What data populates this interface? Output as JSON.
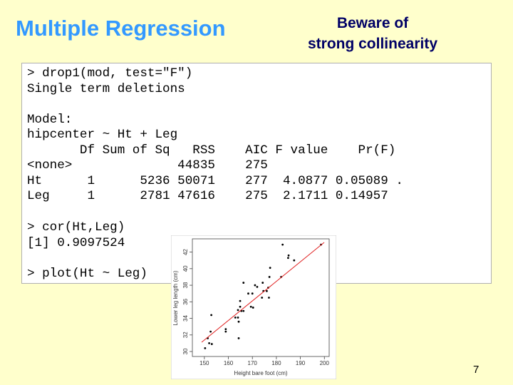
{
  "header": {
    "title": "Multiple Regression",
    "note": [
      "Beware of",
      "strong collinearity"
    ]
  },
  "console": {
    "lines": [
      "> drop1(mod, test=\"F\")",
      "Single term deletions",
      "Model:",
      "hipcenter ~ Ht + Leg",
      "       Df Sum of Sq   RSS    AIC F value    Pr(F)",
      "<none>              44835    275",
      "Ht      1      5236 50071    277  4.0877 0.05089 .",
      "Leg     1      2781 47616    275  2.1711 0.14957",
      "> cor(Ht,Leg)",
      "[1] 0.9097524",
      "> plot(Ht ~ Leg)"
    ]
  },
  "chart_data": {
    "type": "scatter",
    "x_label": "Height bare foot (cm)",
    "y_label": "Lower leg length (cm)",
    "x": [
      182.6,
      198.6,
      185.1,
      184.9,
      187.4,
      177.4,
      177.1,
      182.0,
      166.3,
      174.3,
      171.1,
      172.0,
      176.6,
      170.0,
      174.6,
      176.0,
      164.9,
      168.3,
      174.0,
      176.9,
      164.9,
      164.0,
      165.4,
      166.3,
      169.4,
      170.3,
      162.9,
      164.0,
      164.3,
      152.9,
      158.9,
      158.9,
      152.6,
      151.4,
      152.0,
      153.1,
      164.3,
      150.3
    ],
    "y": [
      42.9,
      42.9,
      41.6,
      41.3,
      41.0,
      40.1,
      39.0,
      39.0,
      38.3,
      38.3,
      38.0,
      37.8,
      37.7,
      37.0,
      37.3,
      37.3,
      36.1,
      37.0,
      36.5,
      36.5,
      35.4,
      35.0,
      34.9,
      34.9,
      35.4,
      35.3,
      34.1,
      34.1,
      33.6,
      34.4,
      32.7,
      32.4,
      32.4,
      31.6,
      31.0,
      30.9,
      31.6,
      30.4
    ],
    "color": "#000000",
    "xlim": [
      145,
      202
    ],
    "ylim": [
      29.4,
      43.6
    ],
    "xticks": [
      150,
      160,
      170,
      180,
      190,
      200
    ],
    "yticks": [
      30,
      32,
      34,
      36,
      38,
      40,
      42
    ]
  },
  "page_number": "7"
}
